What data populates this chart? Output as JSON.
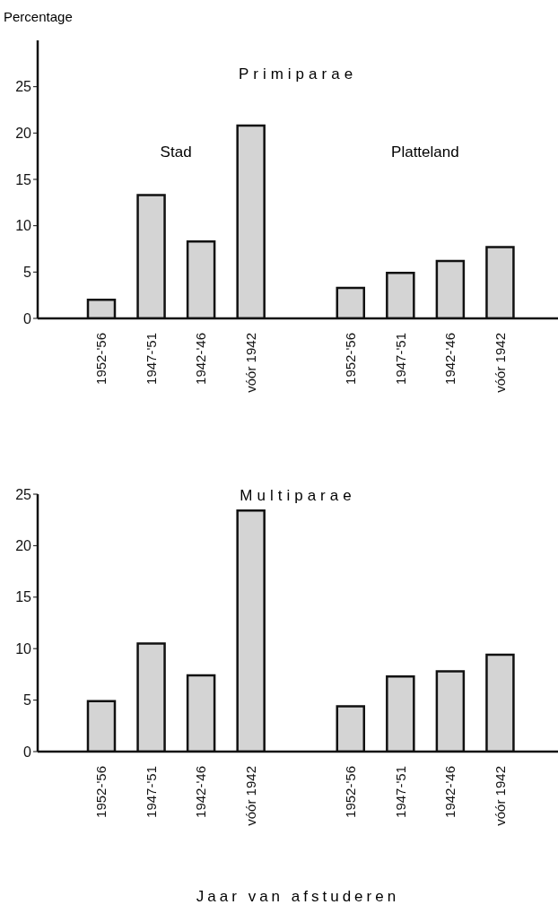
{
  "chart_data": [
    {
      "type": "bar",
      "title": "Primiparae",
      "ylabel": "Percentage",
      "annotations": [
        "Stad",
        "Platteland"
      ],
      "categories": [
        "1952-'56",
        "1947-'51",
        "1942-'46",
        "vóór 1942",
        null,
        "1952-'56",
        "1947-'51",
        "1942-'46",
        "vóór 1942"
      ],
      "values": [
        2.0,
        13.3,
        8.3,
        20.8,
        null,
        3.3,
        4.9,
        6.2,
        7.7
      ],
      "color": "#d4d4d4",
      "ylim": [
        0,
        30
      ],
      "yticks": [
        0,
        5,
        10,
        15,
        20,
        25
      ],
      "grid": false
    },
    {
      "type": "bar",
      "title": "Multiparae",
      "xlabel": "Jaar van afstuderen",
      "categories": [
        "1952-'56",
        "1947-'51",
        "1942-'46",
        "vóór 1942",
        null,
        "1952-'56",
        "1947-'51",
        "1942-'46",
        "vóór 1942"
      ],
      "values": [
        4.9,
        10.5,
        7.4,
        23.4,
        null,
        4.4,
        7.3,
        7.8,
        9.4
      ],
      "color": "#d4d4d4",
      "ylim": [
        0,
        25
      ],
      "yticks": [
        0,
        5,
        10,
        15,
        20,
        25
      ],
      "grid": false
    }
  ]
}
